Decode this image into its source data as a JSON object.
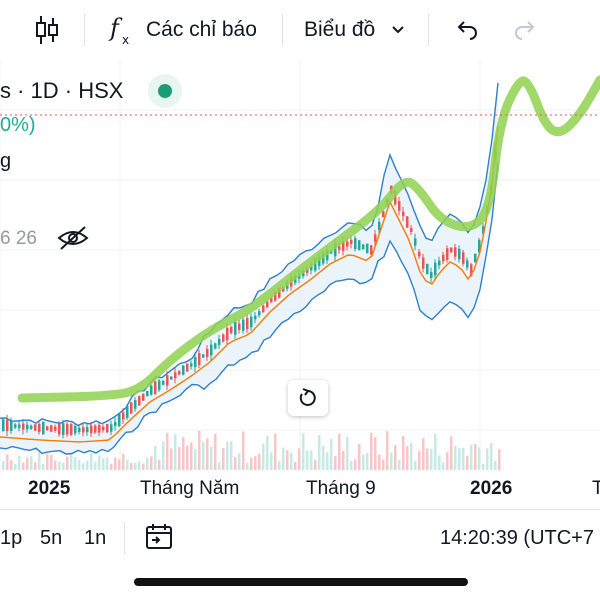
{
  "toolbar": {
    "candle_icon": "candlestick-icon",
    "indicators_label": "Các chỉ báo",
    "chart_type_label": "Biểu đồ",
    "undo_icon": "undo-icon",
    "redo_icon": "redo-icon"
  },
  "symbol": {
    "header_text": "s · 1D · HSX",
    "change_text": "0%)",
    "partial_label": "g",
    "volume_text": "6 26"
  },
  "x_axis": {
    "ticks": [
      "2025",
      "Tháng Năm",
      "Tháng 9",
      "2026"
    ],
    "partial_right": "T"
  },
  "bottom_bar": {
    "ranges": [
      "1p",
      "5n",
      "1n"
    ],
    "timestamp": "14:20:39 (UTC+7"
  },
  "colors": {
    "up": "#26a69a",
    "down": "#ef5350",
    "band": "#2f80c8",
    "ma": "#f57c00",
    "highlight": "#8fd14f",
    "live": "#1a9d77"
  }
}
